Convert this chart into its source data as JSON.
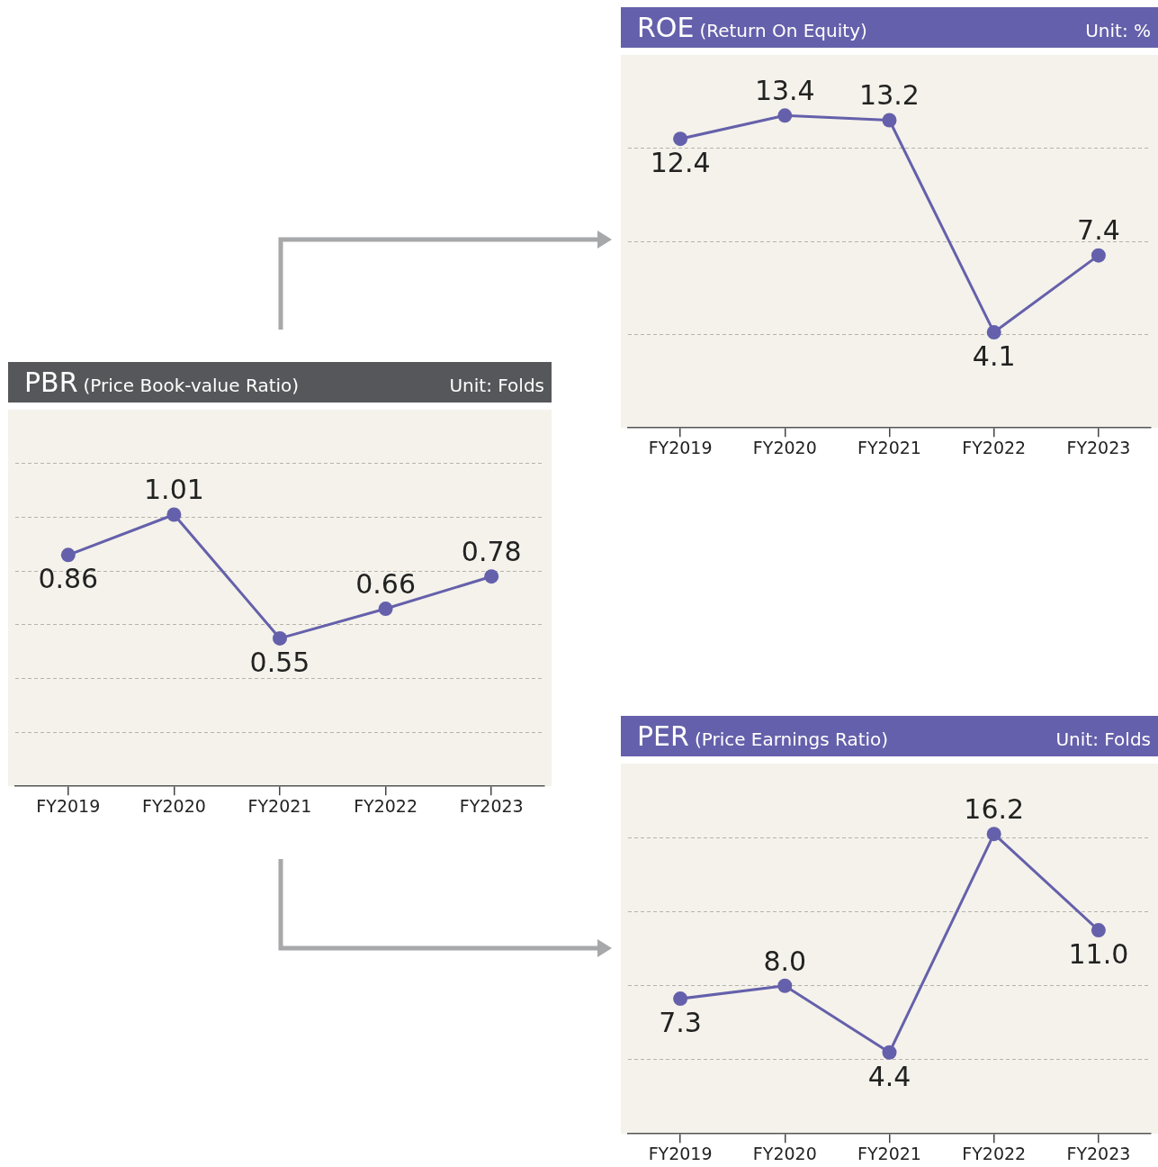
{
  "chart_data": [
    {
      "type": "line",
      "title": "ROE",
      "subtitle": "(Return On Equity)",
      "ylabel": "Unit: %",
      "categories": [
        "FY2019",
        "FY2020",
        "FY2021",
        "FY2022",
        "FY2023"
      ],
      "series": [
        {
          "color": "#6560ab",
          "values": [
            12.4,
            13.4,
            13.2,
            4.1,
            7.4
          ]
        }
      ],
      "ylim": [
        0,
        16
      ],
      "yticks": [
        {
          "value": 4,
          "label": null
        },
        {
          "value": 8,
          "label": null
        },
        {
          "value": 12,
          "label": null
        }
      ],
      "tick_labels": "x",
      "grid": "y",
      "legend": false,
      "marker": "circle",
      "line_style": "solid",
      "data_labels": true
    },
    {
      "type": "line",
      "title": "PBR",
      "subtitle": "(Price Book-value Ratio)",
      "ylabel": "Unit: Folds",
      "categories": [
        "FY2019",
        "FY2020",
        "FY2021",
        "FY2022",
        "FY2023"
      ],
      "series": [
        {
          "color": "#6560ab",
          "values": [
            0.86,
            1.01,
            0.55,
            0.66,
            0.78
          ]
        }
      ],
      "ylim": [
        0,
        1.4
      ],
      "yticks": [
        {
          "value": 0.2,
          "label": null
        },
        {
          "value": 0.4,
          "label": null
        },
        {
          "value": 0.6,
          "label": null
        },
        {
          "value": 0.8,
          "label": null
        },
        {
          "value": 1.0,
          "label": null
        },
        {
          "value": 1.2,
          "label": null
        }
      ],
      "tick_labels": "x",
      "grid": "y",
      "legend": false,
      "marker": "circle",
      "line_style": "solid",
      "data_labels": true
    },
    {
      "type": "line",
      "title": "PER",
      "subtitle": "(Price Earnings Ratio)",
      "ylabel": "Unit: Folds",
      "categories": [
        "FY2019",
        "FY2020",
        "FY2021",
        "FY2022",
        "FY2023"
      ],
      "series": [
        {
          "color": "#6560ab",
          "values": [
            7.3,
            8.0,
            4.4,
            16.2,
            11.0
          ],
          "value_labels": [
            "7.3",
            "8.0",
            "4.4",
            "16.2",
            "11.0"
          ]
        }
      ],
      "ylim": [
        0,
        20
      ],
      "yticks": [
        {
          "value": 4,
          "label": null
        },
        {
          "value": 8,
          "label": null
        },
        {
          "value": 12,
          "label": null
        },
        {
          "value": 16,
          "label": null
        }
      ],
      "tick_labels": "x",
      "grid": "y",
      "legend": false,
      "marker": "circle",
      "line_style": "solid"
    }
  ]
}
